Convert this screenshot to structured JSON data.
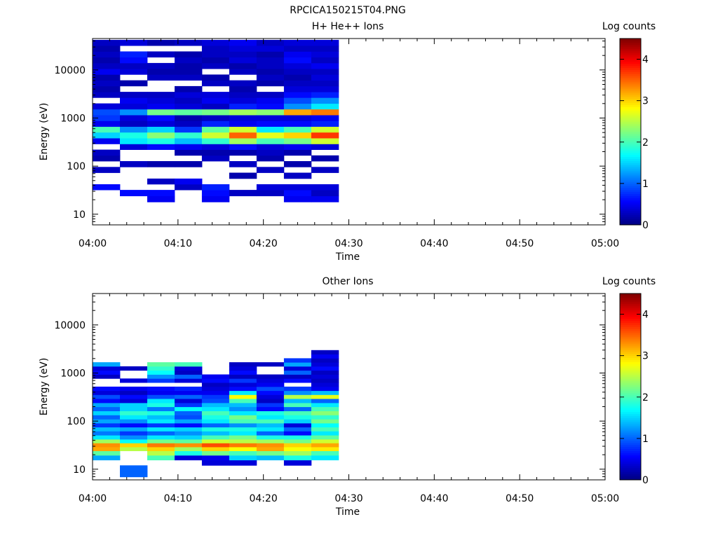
{
  "figure": {
    "title": "RPCICA150215T04.PNG"
  },
  "colors": {
    "axis": "#000000",
    "background": "#ffffff",
    "colormap": [
      "#00007f",
      "#0000ff",
      "#007fff",
      "#00ffff",
      "#7fff7f",
      "#ffff00",
      "#ff7f00",
      "#ff0000",
      "#7f0000"
    ]
  },
  "chart_data": [
    {
      "type": "heatmap",
      "title": "H+ He++ Ions",
      "xlabel": "Time",
      "ylabel": "Energy (eV)",
      "x_ticks": [
        "04:00",
        "04:10",
        "04:20",
        "04:30",
        "04:40",
        "04:50",
        "05:00"
      ],
      "xlim": [
        "04:00",
        "05:00"
      ],
      "y_scale": "log",
      "ylim": [
        6,
        45000
      ],
      "y_ticks": [
        10,
        100,
        1000,
        10000
      ],
      "y_tick_labels": [
        "10",
        "100",
        "1000",
        "10000"
      ],
      "colorbar": {
        "label": "Log counts",
        "range": [
          0,
          4.5
        ],
        "ticks": [
          "0",
          "1",
          "2",
          "3",
          "4"
        ]
      },
      "time_bins_min": [
        0,
        3.2,
        6.4,
        9.6,
        12.8,
        16,
        19.2,
        22.4,
        25.6,
        28.8
      ],
      "energy_bins_eV": [
        18,
        24,
        32,
        42,
        55,
        73,
        96,
        127,
        167,
        220,
        290,
        383,
        505,
        666,
        878,
        1158,
        1527,
        2013,
        2655,
        3500,
        4616,
        6086,
        8026,
        10583,
        13956,
        18404,
        24269,
        32000,
        42200
      ],
      "values": [
        [
          0,
          0,
          0.6,
          0,
          0,
          0.3,
          0,
          0.2,
          0.3,
          0,
          0.5,
          1.5,
          2.0,
          0.5,
          0.8,
          0.9,
          0.4,
          0,
          0.3,
          0.2,
          0.3,
          0.2,
          0.5,
          0.3,
          0.2,
          0.3,
          0.2,
          0.3
        ],
        [
          0,
          0.6,
          0,
          0,
          0,
          0,
          0.3,
          0,
          0,
          0.4,
          1.6,
          1.8,
          1.2,
          0.3,
          0.4,
          1.2,
          0.4,
          0.5,
          0.3,
          0,
          0.2,
          0,
          0.4,
          0.3,
          0.6,
          0.7,
          0,
          0.4
        ],
        [
          0.5,
          0.6,
          0,
          0.3,
          0,
          0,
          0.2,
          0,
          0,
          0.6,
          1.8,
          2.3,
          1.5,
          0.4,
          0.6,
          2.2,
          0.5,
          0.4,
          0.3,
          0,
          0,
          0.3,
          0.2,
          0.3,
          0,
          0.3,
          0,
          0.2
        ],
        [
          0,
          0,
          0.3,
          0.5,
          0,
          0,
          0.2,
          0,
          0.2,
          0.5,
          1.4,
          1.9,
          0.8,
          0.3,
          0.2,
          2.1,
          0.4,
          0.3,
          0.4,
          0.2,
          0,
          0.3,
          0.2,
          0.2,
          0.3,
          0.2,
          0,
          0.3
        ],
        [
          0.5,
          0.6,
          0.7,
          0,
          0,
          0,
          0,
          0.3,
          0.2,
          0.4,
          1.9,
          2.6,
          2.1,
          0.7,
          0.3,
          2.2,
          0.3,
          0.5,
          0.4,
          0,
          0.3,
          0.2,
          0,
          0.3,
          0.2,
          0.3,
          0.3,
          0.4
        ],
        [
          0,
          0.3,
          0,
          0,
          0.2,
          0,
          0.3,
          0,
          0.2,
          0.6,
          2.4,
          3.5,
          2.6,
          0.5,
          0.4,
          2.4,
          0.7,
          0.4,
          0.3,
          0.2,
          0.3,
          0,
          0.3,
          0.2,
          0.4,
          0.3,
          0.4,
          0.5
        ],
        [
          0,
          0.3,
          0.4,
          0,
          0,
          0.3,
          0,
          0.2,
          0.3,
          0.4,
          2.0,
          2.7,
          1.6,
          0.6,
          0.4,
          2.3,
          0.6,
          0.5,
          0.3,
          0,
          0.2,
          0.3,
          0.2,
          0.3,
          0.3,
          0.2,
          0.4,
          0.3
        ],
        [
          0.5,
          0.6,
          0.4,
          0,
          0.3,
          0,
          0.2,
          0,
          0.2,
          0.5,
          2.2,
          3.0,
          2.0,
          0.6,
          0.4,
          3.2,
          1.2,
          0.9,
          0.6,
          0.4,
          0.3,
          0.2,
          0.3,
          0.4,
          0.6,
          0.5,
          0.3,
          0.4
        ],
        [
          0.5,
          0.3,
          0.4,
          0,
          0,
          0.3,
          0,
          0.2,
          0,
          0.4,
          2.6,
          3.7,
          2.6,
          0.7,
          0.5,
          3.4,
          1.6,
          1.2,
          0.7,
          0.4,
          0.3,
          0.4,
          0.3,
          0.5,
          0.3,
          0.4,
          0.3,
          0.4
        ]
      ]
    },
    {
      "type": "heatmap",
      "title": "Other Ions",
      "xlabel": "Time",
      "ylabel": "Energy (eV)",
      "x_ticks": [
        "04:00",
        "04:10",
        "04:20",
        "04:30",
        "04:40",
        "04:50",
        "05:00"
      ],
      "xlim": [
        "04:00",
        "05:00"
      ],
      "y_scale": "log",
      "ylim": [
        6,
        45000
      ],
      "y_ticks": [
        10,
        100,
        1000,
        10000
      ],
      "y_tick_labels": [
        "10",
        "100",
        "1000",
        "10000"
      ],
      "colorbar": {
        "label": "Log counts",
        "range": [
          0,
          4.5
        ],
        "ticks": [
          "0",
          "1",
          "2",
          "3",
          "4"
        ]
      },
      "time_bins_min": [
        0,
        3.2,
        6.4,
        9.6,
        12.8,
        16,
        19.2,
        22.4,
        25.6,
        28.8
      ],
      "energy_bins_eV": [
        6.9,
        9,
        12,
        15.5,
        19.5,
        24,
        29,
        35,
        42,
        51,
        62,
        75,
        91,
        110,
        134,
        163,
        198,
        240,
        292,
        354,
        430,
        522,
        634,
        770,
        935,
        1135,
        1378,
        1673,
        2031,
        2466,
        2993
      ],
      "values": [
        [
          0,
          0,
          0,
          1.3,
          2.1,
          3.2,
          3.3,
          2.4,
          1.6,
          1.1,
          1.4,
          0.8,
          1.3,
          1.0,
          1.5,
          1.0,
          1.3,
          0.6,
          0.9,
          0.4,
          0.6,
          0,
          0,
          0.3,
          0.6,
          0.4,
          1.3,
          0,
          0,
          0
        ],
        [
          1.0,
          1.0,
          0,
          0,
          0,
          2.5,
          3.0,
          1.7,
          1.2,
          0.8,
          1.3,
          0.6,
          1.2,
          1.6,
          1.9,
          1.5,
          1.5,
          0.4,
          0.6,
          0.3,
          0.5,
          0,
          0.4,
          0,
          0,
          0.3,
          0,
          0,
          0,
          0
        ],
        [
          0,
          0,
          0,
          2.0,
          2.5,
          3.0,
          3.4,
          2.2,
          1.6,
          1.0,
          1.6,
          0.8,
          1.6,
          1.4,
          1.8,
          1.1,
          1.8,
          1.6,
          0.9,
          0.5,
          0.6,
          0,
          0.8,
          1.2,
          1.7,
          1.9,
          2.1,
          0,
          0,
          0
        ],
        [
          0,
          0,
          0,
          0.4,
          1.8,
          2.4,
          3.3,
          2.1,
          1.5,
          1.2,
          1.5,
          0.6,
          1.3,
          0.9,
          1.0,
          1.7,
          0.8,
          0.4,
          1.0,
          0.5,
          0.7,
          0,
          0.4,
          1.0,
          0.3,
          0.4,
          2.0,
          0,
          0,
          0
        ],
        [
          0,
          0,
          0.4,
          0.5,
          2.2,
          3.0,
          3.6,
          2.6,
          2.0,
          1.4,
          1.8,
          1.0,
          1.6,
          1.8,
          2.0,
          1.6,
          1.4,
          0.9,
          0.8,
          0.5,
          0.4,
          0.3,
          0.6,
          0.5,
          0,
          0,
          0,
          0,
          0,
          0
        ],
        [
          0,
          0,
          0.4,
          1.5,
          2.0,
          2.8,
          3.4,
          2.5,
          2.2,
          1.6,
          1.8,
          1.2,
          2.0,
          2.2,
          1.6,
          1.2,
          1.4,
          2.0,
          2.8,
          1.6,
          0.6,
          0.4,
          0.8,
          0.3,
          0.6,
          0.4,
          0.3,
          0,
          0,
          0
        ],
        [
          0,
          0,
          0,
          1.4,
          2.2,
          3.2,
          3.3,
          2.4,
          1.8,
          1.0,
          1.6,
          1.4,
          2.0,
          1.6,
          1.8,
          0.6,
          0.8,
          0.3,
          0.4,
          0.6,
          0.9,
          0.5,
          0.4,
          0.3,
          0,
          0,
          0.3,
          0,
          0,
          0
        ],
        [
          0,
          0,
          0.4,
          1.8,
          2.4,
          2.8,
          3.0,
          2.2,
          1.8,
          0.6,
          1.0,
          0.4,
          1.5,
          1.8,
          2.0,
          1.0,
          2.0,
          1.4,
          2.5,
          1.2,
          0.8,
          0,
          0.6,
          0.3,
          1.0,
          0.4,
          1.3,
          0.8,
          0,
          0
        ],
        [
          0,
          0,
          0,
          1.6,
          2.0,
          2.9,
          3.2,
          2.6,
          2.1,
          1.6,
          2.0,
          1.7,
          2.2,
          1.9,
          2.3,
          2.0,
          1.6,
          1.0,
          2.7,
          1.4,
          0.5,
          0.4,
          0.3,
          0.4,
          0.3,
          0.6,
          0.4,
          0.3,
          0.5,
          0.3
        ]
      ]
    }
  ]
}
